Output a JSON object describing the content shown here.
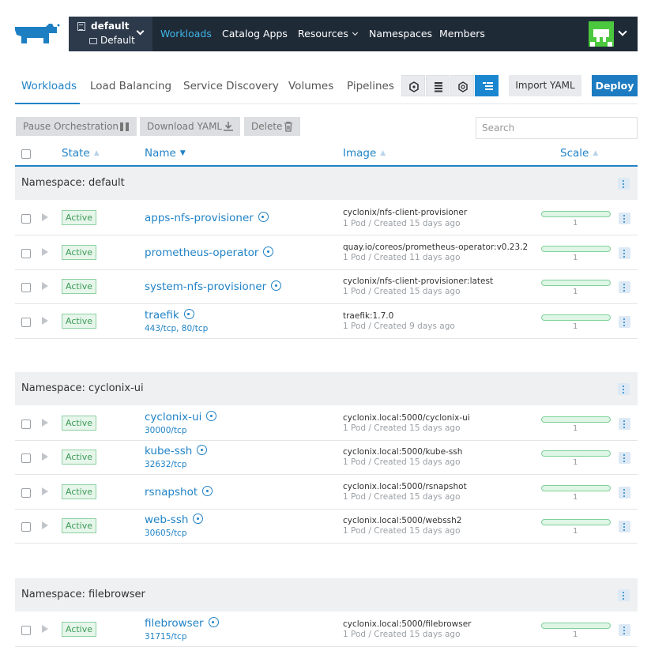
{
  "header": {
    "cluster_name": "default",
    "project_name": "Default",
    "nav": [
      {
        "label": "Workloads",
        "active": true
      },
      {
        "label": "Catalog Apps"
      },
      {
        "label": "Resources",
        "dropdown": true
      },
      {
        "label": "Namespaces"
      },
      {
        "label": "Members"
      }
    ]
  },
  "tabs": [
    {
      "label": "Workloads",
      "active": true
    },
    {
      "label": "Load Balancing"
    },
    {
      "label": "Service Discovery"
    },
    {
      "label": "Volumes"
    },
    {
      "label": "Pipelines"
    }
  ],
  "toolbar": {
    "import_label": "Import YAML",
    "deploy_label": "Deploy"
  },
  "actions": {
    "pause_label": "Pause Orchestration",
    "download_label": "Download YAML",
    "delete_label": "Delete"
  },
  "search": {
    "placeholder": "Search"
  },
  "columns": {
    "state": "State",
    "name": "Name",
    "image": "Image",
    "scale": "Scale"
  },
  "groups": [
    {
      "namespace": "Namespace: default",
      "rows": [
        {
          "state": "Active",
          "name": "apps-nfs-provisioner",
          "ports": "",
          "image": "cyclonix/nfs-client-provisioner",
          "meta": "1 Pod / Created 15 days ago",
          "scale": "1"
        },
        {
          "state": "Active",
          "name": "prometheus-operator",
          "ports": "",
          "image": "quay.io/coreos/prometheus-operator:v0.23.2",
          "meta": "1 Pod / Created 11 days ago",
          "scale": "1"
        },
        {
          "state": "Active",
          "name": "system-nfs-provisioner",
          "ports": "",
          "image": "cyclonix/nfs-client-provisioner:latest",
          "meta": "1 Pod / Created 15 days ago",
          "scale": "1"
        },
        {
          "state": "Active",
          "name": "traefik",
          "ports": "443/tcp, 80/tcp",
          "image": "traefik:1.7.0",
          "meta": "1 Pod / Created 9 days ago",
          "scale": "1"
        }
      ]
    },
    {
      "namespace": "Namespace: cyclonix-ui",
      "rows": [
        {
          "state": "Active",
          "name": "cyclonix-ui",
          "ports": "30000/tcp",
          "image": "cyclonix.local:5000/cyclonix-ui",
          "meta": "1 Pod / Created 15 days ago",
          "scale": "1"
        },
        {
          "state": "Active",
          "name": "kube-ssh",
          "ports": "32632/tcp",
          "image": "cyclonix.local:5000/kube-ssh",
          "meta": "1 Pod / Created 15 days ago",
          "scale": "1"
        },
        {
          "state": "Active",
          "name": "rsnapshot",
          "ports": "",
          "image": "cyclonix.local:5000/rsnapshot",
          "meta": "1 Pod / Created 15 days ago",
          "scale": "1"
        },
        {
          "state": "Active",
          "name": "web-ssh",
          "ports": "30605/tcp",
          "image": "cyclonix.local:5000/webssh2",
          "meta": "1 Pod / Created 15 days ago",
          "scale": "1"
        }
      ]
    },
    {
      "namespace": "Namespace: filebrowser",
      "rows": [
        {
          "state": "Active",
          "name": "filebrowser",
          "ports": "31715/tcp",
          "image": "cyclonix.local:5000/filebrowser",
          "meta": "1 Pod / Created 15 days ago",
          "scale": "1"
        }
      ]
    }
  ]
}
